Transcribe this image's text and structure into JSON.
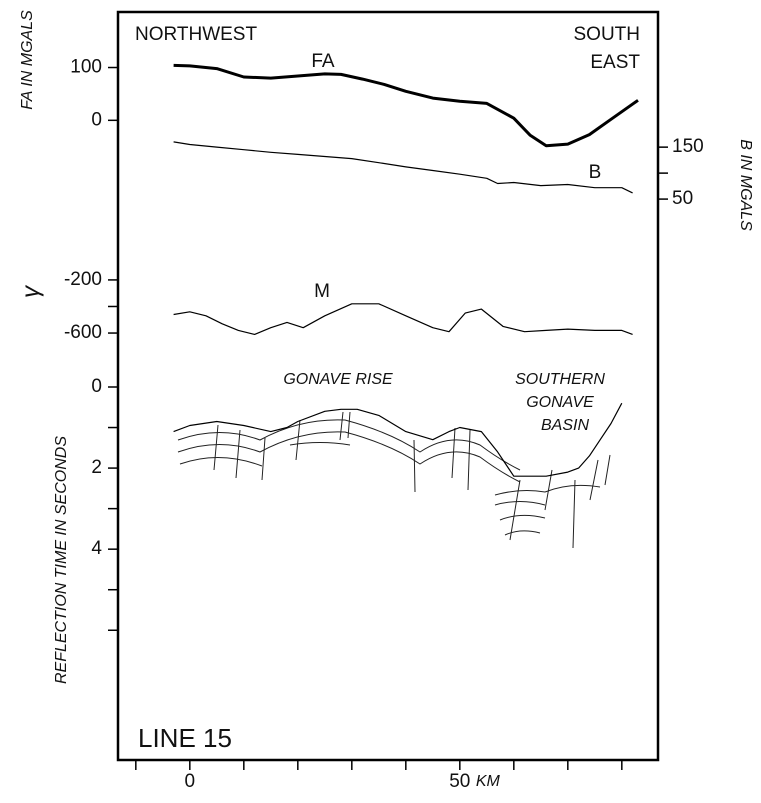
{
  "annotations": {
    "left_header": "NORTHWEST",
    "right_header": [
      "SOUTH",
      "EAST"
    ],
    "regions": [
      [
        "GONAVE RISE"
      ],
      [
        "SOUTHERN",
        "GONAVE",
        "BASIN"
      ]
    ],
    "line_label": "LINE 15"
  },
  "chart_data": [
    {
      "type": "line",
      "axis_side": "left",
      "ylabel": "FA IN MGALS",
      "ylim": [
        -60,
        190
      ],
      "yticks": [
        0,
        100
      ],
      "minor_yticks": [],
      "series": [
        {
          "name": "FA",
          "color": "#000000",
          "line_width": 3,
          "x": [
            -3,
            0,
            5,
            10,
            15,
            20,
            25,
            28,
            32,
            36,
            40,
            45,
            50,
            55,
            60,
            63,
            66,
            70,
            74,
            78,
            83
          ],
          "values": [
            104,
            103,
            98,
            82,
            80,
            84,
            88,
            87,
            78,
            68,
            55,
            42,
            36,
            32,
            4,
            -28,
            -48,
            -45,
            -27,
            2,
            38
          ]
        }
      ]
    },
    {
      "type": "line",
      "axis_side": "right",
      "ylabel": "B IN MGALS",
      "ylim": [
        29,
        183
      ],
      "yticks": [
        50,
        150
      ],
      "minor_yticks": [
        100
      ],
      "series": [
        {
          "name": "B",
          "color": "#000000",
          "line_width": 1.2,
          "x": [
            -3,
            0,
            5,
            10,
            15,
            20,
            25,
            30,
            35,
            40,
            45,
            50,
            55,
            57,
            60,
            65,
            70,
            75,
            80,
            82
          ],
          "values": [
            160,
            155,
            150,
            145,
            140,
            136,
            132,
            128,
            120,
            112,
            105,
            98,
            90,
            80,
            82,
            76,
            78,
            72,
            72,
            62
          ]
        }
      ]
    },
    {
      "type": "line",
      "axis_side": "left",
      "ylabel": "γ",
      "ylim": [
        -690,
        -50
      ],
      "yticks": [
        -600,
        -200
      ],
      "minor_yticks": [
        -400
      ],
      "series": [
        {
          "name": "M",
          "color": "#000000",
          "line_width": 1.2,
          "x": [
            -3,
            0,
            3,
            6,
            9,
            12,
            15,
            18,
            21,
            25,
            30,
            35,
            40,
            45,
            48,
            51,
            54,
            58,
            62,
            66,
            70,
            75,
            80,
            82
          ],
          "values": [
            -460,
            -440,
            -470,
            -530,
            -580,
            -610,
            -560,
            -520,
            -560,
            -470,
            -380,
            -380,
            -470,
            -560,
            -590,
            -450,
            -420,
            -550,
            -590,
            -580,
            -570,
            -580,
            -580,
            -610
          ]
        }
      ]
    },
    {
      "type": "line",
      "axis_side": "left",
      "ylabel": "REFLECTION TIME IN SECONDS",
      "ylim": [
        9.2,
        0
      ],
      "yticks": [
        0,
        2,
        4
      ],
      "minor_yticks": [
        1,
        3,
        5,
        6
      ],
      "xlim": [
        -13.3,
        86.7
      ],
      "xticks": [
        0,
        50
      ],
      "minor_xticks": [
        -10,
        10,
        20,
        30,
        40,
        60,
        70,
        80
      ],
      "xlabel": "KM",
      "series": [
        {
          "name": "seafloor",
          "color": "#000000",
          "line_width": 1.2,
          "x": [
            -3,
            0,
            5,
            10,
            15,
            18,
            20,
            25,
            28,
            31,
            35,
            40,
            45,
            48,
            50,
            54,
            57,
            60,
            63,
            66,
            70,
            72,
            74,
            76,
            78,
            80
          ],
          "values": [
            1.1,
            0.95,
            0.85,
            0.95,
            1.1,
            1.0,
            0.85,
            0.6,
            0.55,
            0.55,
            0.7,
            1.1,
            1.3,
            1.1,
            1.0,
            1.1,
            1.6,
            2.2,
            2.2,
            2.2,
            2.1,
            2.0,
            1.7,
            1.3,
            0.9,
            0.4
          ]
        }
      ]
    }
  ]
}
